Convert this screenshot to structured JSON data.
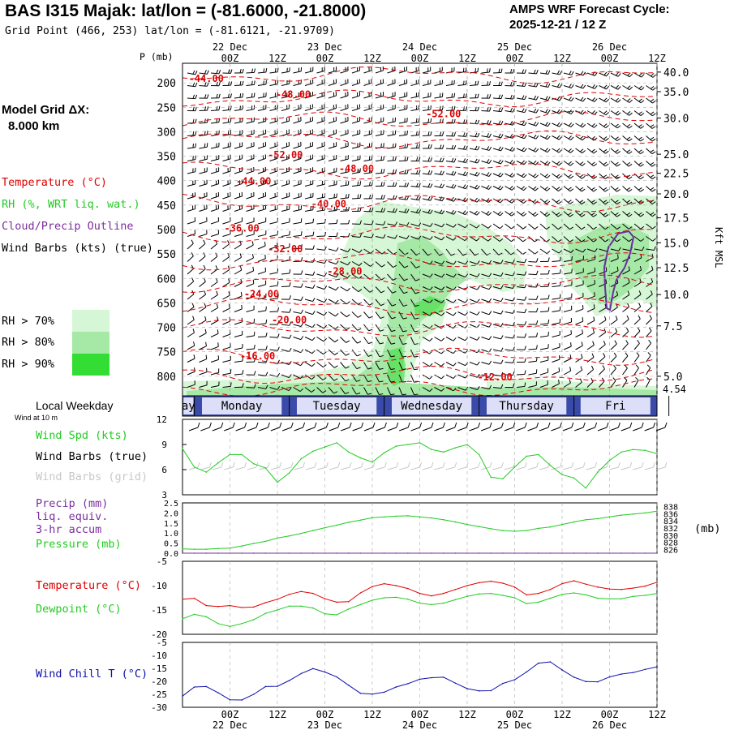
{
  "header": {
    "title": "BAS I315 Majak:  lat/lon = (-81.6000, -21.8000)",
    "subtitle": "Grid Point (466, 253) lat/lon = (-81.6121, -21.9709)",
    "cycle_line1": "AMPS WRF Forecast Cycle:",
    "cycle_line2": "2025-12-21 / 12  Z"
  },
  "model_grid": {
    "label": "Model Grid ΔX:",
    "value": "8.000 km"
  },
  "legend": {
    "temperature": "Temperature (°C)",
    "rh": "RH (%, WRT liq. wat.)",
    "cloud": "Cloud/Precip Outline",
    "barbs": "Wind Barbs (kts) (true)",
    "rh70": "RH > 70%",
    "rh80": "RH > 80%",
    "rh90": "RH > 90%"
  },
  "colors": {
    "temperature": "#e00000",
    "rh70": "#d6f7d6",
    "rh80": "#a6e8a6",
    "rh90": "#33dd33",
    "cloud": "#6a2ea0",
    "green_line": "#22cc22",
    "blue_line": "#1111aa",
    "band": "#3a4aa8",
    "purple_text": "#7a2e9e"
  },
  "time_axis": {
    "top_labels": [
      "00Z",
      "12Z",
      "00Z",
      "12Z",
      "00Z",
      "12Z",
      "00Z",
      "12Z",
      "00Z",
      "12Z"
    ],
    "hour_offsets": [
      12,
      24,
      36,
      48,
      60,
      72,
      84,
      96,
      108,
      120
    ],
    "date_labels": [
      "22 Dec",
      "23 Dec",
      "24 Dec",
      "25 Dec",
      "26 Dec"
    ],
    "date_offsets": [
      12,
      36,
      60,
      84,
      108
    ],
    "total_hours": 120
  },
  "pressure_axis": {
    "label": "P (mb)",
    "levels": [
      200,
      250,
      300,
      350,
      400,
      450,
      500,
      550,
      600,
      650,
      700,
      750,
      800
    ],
    "top_mb": 160,
    "bottom_mb": 840
  },
  "height_axis": {
    "label": "Kft MSL",
    "ticks": [
      "40.0",
      "35.0",
      "30.0",
      "25.0",
      "22.5",
      "20.0",
      "17.5",
      "15.0",
      "12.5",
      "10.0",
      "7.5",
      "5.0"
    ],
    "tick_pressure_mb": [
      178,
      218,
      272,
      346,
      385,
      427,
      476,
      527,
      578,
      633,
      697,
      800
    ],
    "surface": "4.54"
  },
  "isotherms": [
    {
      "label": "-44.00",
      "hour": 6,
      "p": 190
    },
    {
      "label": "-48.00",
      "hour": 28,
      "p": 222
    },
    {
      "label": "-52.00",
      "hour": 66,
      "p": 262
    },
    {
      "label": "-52.00",
      "hour": 26,
      "p": 346
    },
    {
      "label": "-48.00",
      "hour": 44,
      "p": 374
    },
    {
      "label": "-44.00",
      "hour": 18,
      "p": 400
    },
    {
      "label": "-40.00",
      "hour": 37,
      "p": 446
    },
    {
      "label": "-36.00",
      "hour": 15,
      "p": 496
    },
    {
      "label": "-32.00",
      "hour": 26,
      "p": 538
    },
    {
      "label": "-28.00",
      "hour": 41,
      "p": 584
    },
    {
      "label": "-24.00",
      "hour": 20,
      "p": 630
    },
    {
      "label": "-20.00",
      "hour": 27,
      "p": 683
    },
    {
      "label": "-16.00",
      "hour": 19,
      "p": 757
    },
    {
      "label": "-12.00",
      "hour": 79,
      "p": 800
    }
  ],
  "weekday_band": {
    "label": "Local Weekday",
    "sublabel": "Wind at 10 m",
    "days": [
      "ay",
      "Monday",
      "Tuesday",
      "Wednesday",
      "Thursday",
      "Fri"
    ]
  },
  "wind_panel": {
    "spd_label": "Wind Spd (kts)",
    "barbs_true_label": "Wind Barbs (true)",
    "barbs_grid_label": "Wind Barbs (grid)",
    "yticks": [
      "12",
      "9",
      "6",
      "3"
    ],
    "ymin": 3,
    "ymax": 12
  },
  "precip_panel": {
    "precip_label": "Precip (mm)",
    "precip_sub1": "liq. equiv.",
    "precip_sub2": "3-hr accum",
    "pressure_label": "Pressure (mb)",
    "left_ticks": [
      "2.5",
      "2.0",
      "1.5",
      "1.0",
      "0.5",
      "0.0"
    ],
    "right_ticks": [
      "838",
      "836",
      "834",
      "832",
      "830",
      "828",
      "826"
    ],
    "unit": "(mb)",
    "pmin": 825,
    "pmax": 839
  },
  "temp_panel": {
    "temp_label": "Temperature (°C)",
    "dew_label": "Dewpoint (°C)",
    "yticks": [
      "-5",
      "-10",
      "-15",
      "-20"
    ],
    "ymin": -20,
    "ymax": -5
  },
  "chill_panel": {
    "label": "Wind Chill T (°C)",
    "yticks": [
      "-5",
      "-10",
      "-15",
      "-20",
      "-25",
      "-30"
    ],
    "ymin": -30,
    "ymax": -5
  },
  "chart_data": {
    "type": "line",
    "x_hours": [
      0,
      3,
      6,
      9,
      12,
      15,
      18,
      21,
      24,
      27,
      30,
      33,
      36,
      39,
      42,
      45,
      48,
      51,
      54,
      57,
      60,
      63,
      66,
      69,
      72,
      75,
      78,
      81,
      84,
      87,
      90,
      93,
      96,
      99,
      102,
      105,
      108,
      111,
      114,
      117,
      120
    ],
    "series": [
      {
        "name": "Wind Spd (kts)",
        "values": [
          8.5,
          6.3,
          5.7,
          6.8,
          7.8,
          7.8,
          6.7,
          6.2,
          4.5,
          5.6,
          7.3,
          8.2,
          8.7,
          9.2,
          8.1,
          7.4,
          6.9,
          8.0,
          8.8,
          9.0,
          9.2,
          8.4,
          8.1,
          8.6,
          9.0,
          7.8,
          5.1,
          4.9,
          6.3,
          7.6,
          7.8,
          6.5,
          5.4,
          5.0,
          3.8,
          5.7,
          7.1,
          8.1,
          8.4,
          8.3,
          7.9
        ]
      },
      {
        "name": "Pressure (mb)",
        "values": [
          826.2,
          826.1,
          826.1,
          826.3,
          826.4,
          827.0,
          827.7,
          828.3,
          829.2,
          829.8,
          830.5,
          831.3,
          832.1,
          832.8,
          833.6,
          834.2,
          834.9,
          835.1,
          835.3,
          835.4,
          835.1,
          834.8,
          834.3,
          833.7,
          833.0,
          832.4,
          831.8,
          831.3,
          831.1,
          831.3,
          831.9,
          832.3,
          833.0,
          833.7,
          834.3,
          834.6,
          835.1,
          835.6,
          835.9,
          836.2,
          836.7
        ]
      },
      {
        "name": "Temperature (°C)",
        "values": [
          -12.8,
          -12.6,
          -14.1,
          -14.3,
          -14.1,
          -14.5,
          -14.4,
          -13.5,
          -12.8,
          -11.8,
          -11.2,
          -11.6,
          -12.7,
          -13.4,
          -13.3,
          -11.5,
          -10.2,
          -9.6,
          -10.0,
          -10.6,
          -11.6,
          -12.1,
          -11.6,
          -10.8,
          -10.0,
          -9.4,
          -9.1,
          -9.5,
          -10.3,
          -11.9,
          -11.6,
          -10.8,
          -9.6,
          -9.0,
          -9.7,
          -10.3,
          -10.7,
          -10.8,
          -10.5,
          -10.1,
          -9.3
        ]
      },
      {
        "name": "Dewpoint (°C)",
        "values": [
          -16.8,
          -15.9,
          -16.4,
          -17.8,
          -18.4,
          -17.8,
          -17.0,
          -15.7,
          -15.0,
          -14.2,
          -14.2,
          -14.6,
          -15.8,
          -16.0,
          -14.8,
          -13.9,
          -13.0,
          -12.5,
          -12.4,
          -12.8,
          -13.6,
          -13.9,
          -13.6,
          -12.9,
          -12.2,
          -11.7,
          -11.6,
          -12.0,
          -12.5,
          -13.7,
          -13.4,
          -12.6,
          -11.8,
          -11.5,
          -11.9,
          -12.6,
          -12.7,
          -12.7,
          -12.2,
          -12.0,
          -11.6
        ]
      },
      {
        "name": "Wind Chill T (°C)",
        "values": [
          -25.7,
          -22.2,
          -22.0,
          -24.4,
          -27.1,
          -27.2,
          -25.0,
          -22.0,
          -21.9,
          -19.7,
          -17.0,
          -15.1,
          -16.4,
          -18.3,
          -21.5,
          -24.6,
          -24.9,
          -24.2,
          -22.2,
          -20.9,
          -19.2,
          -18.6,
          -18.4,
          -20.7,
          -22.8,
          -23.7,
          -23.6,
          -20.8,
          -19.4,
          -16.4,
          -13.0,
          -12.5,
          -15.6,
          -18.4,
          -20.1,
          -20.2,
          -18.3,
          -17.2,
          -16.6,
          -15.4,
          -14.4
        ]
      },
      {
        "name": "Precip (mm)",
        "values": [
          0,
          0,
          0,
          0,
          0,
          0,
          0,
          0,
          0,
          0,
          0,
          0,
          0,
          0,
          0,
          0,
          0,
          0,
          0,
          0,
          0,
          0,
          0,
          0,
          0,
          0,
          0,
          0,
          0,
          0,
          0,
          0,
          0,
          0,
          0,
          0,
          0,
          0,
          0,
          0,
          0
        ]
      }
    ],
    "xlabel": "",
    "ylabel": ""
  }
}
